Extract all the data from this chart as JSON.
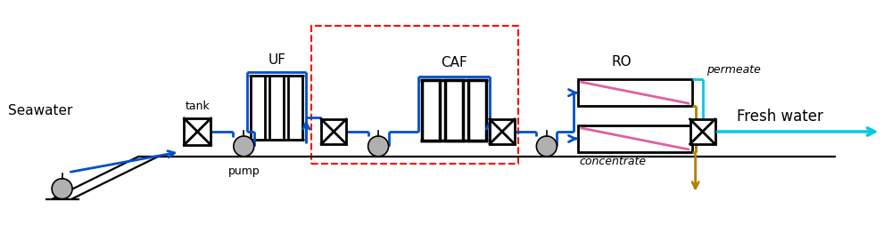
{
  "fig_width": 10.0,
  "fig_height": 2.81,
  "dpi": 100,
  "bg_color": "#ffffff",
  "blue": "#0050C8",
  "cyan": "#00C8E8",
  "gold": "#B08000",
  "pink": "#E060A0",
  "red": "#FF0000",
  "black": "#000000",
  "gray": "#B0B0B0",
  "labels": {
    "seawater": "Seawater",
    "tank": "tank",
    "pump": "pump",
    "uf": "UF",
    "caf": "CAF",
    "ro": "RO",
    "permeate": "permeate",
    "concentrate": "concentrate",
    "fresh_water": "Fresh water"
  }
}
